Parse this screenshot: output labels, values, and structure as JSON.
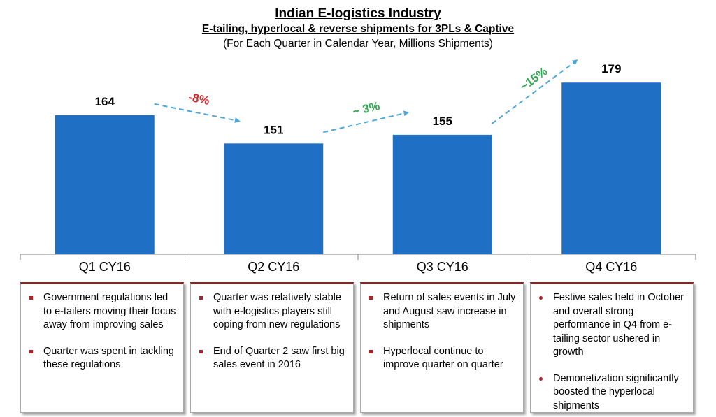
{
  "title": "Indian E-logistics Industry",
  "subtitle": "E-tailing, hyperlocal & reverse shipments for 3PLs & Captive",
  "note": "(For Each Quarter in Calendar Year, Millions Shipments)",
  "colors": {
    "bar": "#1f6fc5",
    "arrow": "#4da6dc",
    "negative": "#d6282e",
    "positive": "#2fa84f",
    "note_border": "#7b2a2a"
  },
  "chart_data": {
    "type": "bar",
    "title": "Indian E-logistics Industry",
    "subtitle": "E-tailing, hyperlocal & reverse shipments for 3PLs & Captive",
    "categories": [
      "Q1 CY16",
      "Q2 CY16",
      "Q3 CY16",
      "Q4 CY16"
    ],
    "values": [
      164,
      151,
      155,
      179
    ],
    "ylim": [
      100,
      190
    ],
    "grid": false,
    "annotations": [
      {
        "from": "Q1 CY16",
        "to": "Q2 CY16",
        "text": "-8%",
        "kind": "negative"
      },
      {
        "from": "Q2 CY16",
        "to": "Q3 CY16",
        "text": "~ 3%",
        "kind": "positive"
      },
      {
        "from": "Q3 CY16",
        "to": "Q4 CY16",
        "text": "~15%",
        "kind": "positive"
      }
    ]
  },
  "notes": [
    {
      "bullets": [
        "Government regulations led to e-tailers moving their focus away from improving sales",
        "Quarter was spent  in tackling these regulations"
      ]
    },
    {
      "bullets": [
        "Quarter was relatively stable with e-logistics players still coping from new regulations",
        "End of Quarter 2 saw first big sales event in 2016"
      ]
    },
    {
      "bullets": [
        "Return of sales events in July and August saw increase in shipments",
        "Hyperlocal continue to improve quarter on quarter"
      ]
    },
    {
      "bullets": [
        "Festive sales held in October and overall strong performance in Q4 from e-tailing sector ushered in growth",
        "Demonetization significantly boosted the hyperlocal shipments"
      ]
    }
  ]
}
